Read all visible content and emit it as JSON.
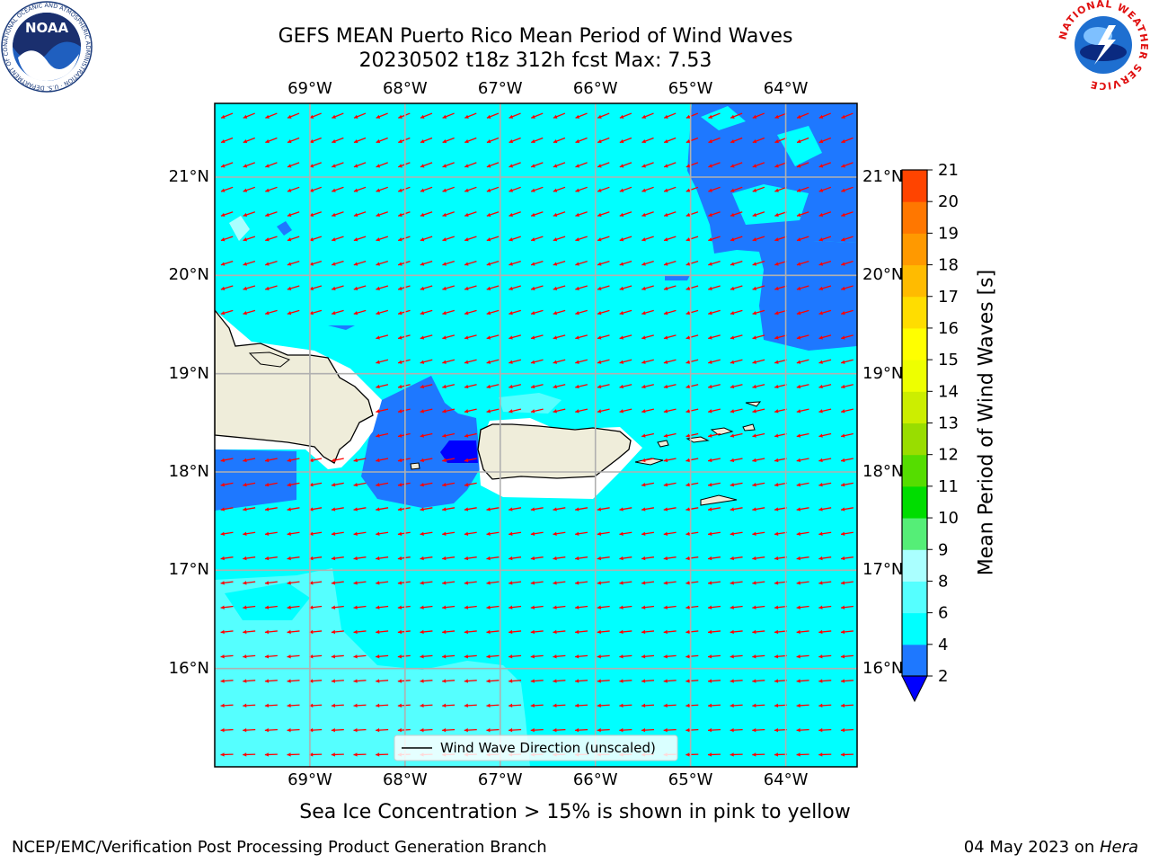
{
  "title": {
    "line1": "GEFS MEAN Puerto Rico Mean Period of Wind Waves",
    "line2": "20230502 t18z 312h fcst   Max: 7.53"
  },
  "logos": {
    "noaa": {
      "icon": "noaa-logo-icon",
      "text": "NOAA",
      "ring_text": "NATIONAL OCEANIC AND ATMOSPHERIC ADMINISTRATION · U.S. DEPARTMENT OF COMMERCE"
    },
    "nws": {
      "icon": "nws-logo-icon",
      "ring_text": "NATIONAL WEATHER SERVICE"
    }
  },
  "map": {
    "lon_ticks": [
      "69°W",
      "68°W",
      "67°W",
      "66°W",
      "65°W",
      "64°W"
    ],
    "lat_ticks": [
      "21°N",
      "20°N",
      "19°N",
      "18°N",
      "17°N",
      "16°N"
    ],
    "lon_range": [
      -70.0,
      -63.25
    ],
    "lat_range": [
      15.0,
      21.75
    ],
    "grid": true,
    "colors": {
      "ocean_main": "#00ffff",
      "ocean_light": "#55ffff",
      "ocean_pale": "#aaffff",
      "ocean_dark": "#1e78ff",
      "ocean_deep": "#0000ff",
      "land": "#efedda",
      "arrow": "#ff0000",
      "grid": "#b0b0b0"
    },
    "arrow_dir_icon": "wind-arrow-icon"
  },
  "legend": {
    "label": "Wind Wave Direction (unscaled)"
  },
  "colorbar": {
    "label": "Mean Period of Wind Waves [s]",
    "ticks": [
      "2",
      "4",
      "6",
      "8",
      "9",
      "10",
      "11",
      "12",
      "13",
      "14",
      "15",
      "16",
      "17",
      "18",
      "19",
      "20",
      "21"
    ],
    "colors": [
      "#1e78ff",
      "#00ffff",
      "#55ffff",
      "#aaffff",
      "#55ee77",
      "#00dd00",
      "#55dd00",
      "#99dd00",
      "#ccee00",
      "#eeff00",
      "#ffff00",
      "#ffdd00",
      "#ffbb00",
      "#ff9900",
      "#ff7700",
      "#ff4400",
      "#ff1100"
    ],
    "under_color": "#0000ff"
  },
  "note": "Sea Ice Concentration > 15% is shown in pink to yellow",
  "footer": {
    "left": "NCEP/EMC/Verification Post Processing Product Generation Branch",
    "date": "04 May 2023 on ",
    "host": "Hera"
  }
}
